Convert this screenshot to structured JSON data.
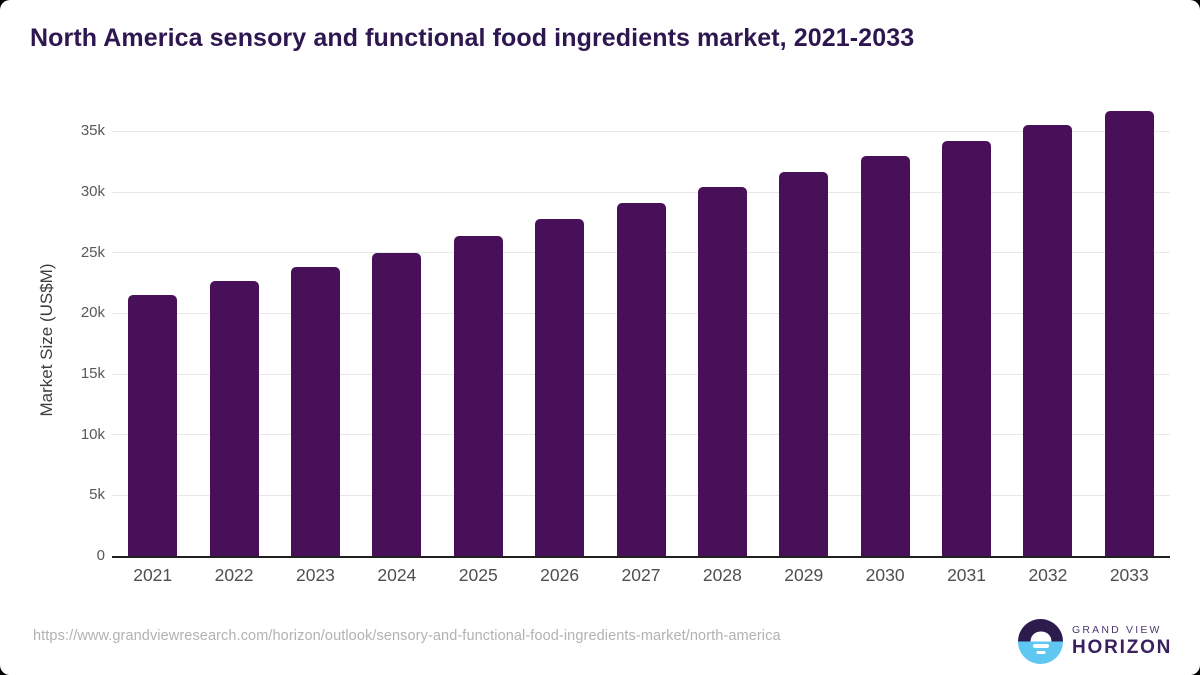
{
  "page": {
    "title": "North America sensory and functional food ingredients market, 2021-2033"
  },
  "chart_data": {
    "type": "bar",
    "title": "North America sensory and functional food ingredients market, 2021-2033",
    "xlabel": "",
    "ylabel": "Market Size (US$M)",
    "categories": [
      "2021",
      "2022",
      "2023",
      "2024",
      "2025",
      "2026",
      "2027",
      "2028",
      "2029",
      "2030",
      "2031",
      "2032",
      "2033"
    ],
    "values": [
      21500,
      22650,
      23800,
      25000,
      26400,
      27750,
      29100,
      30400,
      31650,
      33000,
      34250,
      35500,
      36650
    ],
    "ylim": [
      0,
      38000
    ],
    "yticks": [
      {
        "value": 0,
        "label": "0"
      },
      {
        "value": 5000,
        "label": "5k"
      },
      {
        "value": 10000,
        "label": "10k"
      },
      {
        "value": 15000,
        "label": "15k"
      },
      {
        "value": 20000,
        "label": "20k"
      },
      {
        "value": 25000,
        "label": "25k"
      },
      {
        "value": 30000,
        "label": "30k"
      },
      {
        "value": 35000,
        "label": "35k"
      }
    ],
    "grid": "horizontal",
    "legend": "none",
    "bar_color": "#481058"
  },
  "footer": {
    "source_url": "https://www.grandviewresearch.com/horizon/outlook/sensory-and-functional-food-ingredients-market/north-america",
    "logo": {
      "line1": "GRAND VIEW",
      "line2": "HORIZON"
    }
  },
  "colors": {
    "bar": "#481058",
    "title": "#2e1650",
    "axis_text": "#595959",
    "gridline": "#e8e8e8",
    "axis_line": "#1f1f1f",
    "url_text": "#b2b2b2",
    "logo_purple": "#2d1b4e",
    "logo_blue": "#5ec7f2",
    "logo_text": "#3b2060"
  }
}
